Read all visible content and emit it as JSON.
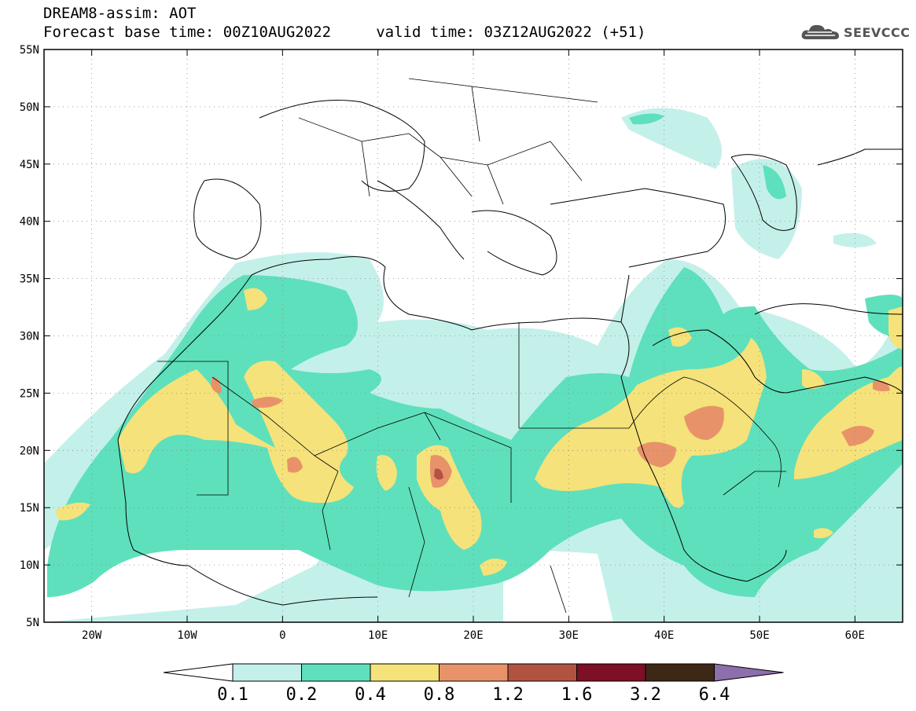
{
  "header": {
    "title_line1": "DREAM8-assim: AOT",
    "title_line2": "Forecast base time: 00Z10AUG2022     valid time: 03Z12AUG2022 (+51)"
  },
  "logo": {
    "text": "SEEVCCC",
    "icon": "cloud-logo-icon"
  },
  "map": {
    "lat_labels": [
      "55N",
      "50N",
      "45N",
      "40N",
      "35N",
      "30N",
      "25N",
      "20N",
      "15N",
      "10N",
      "5N"
    ],
    "lon_labels": [
      "20W",
      "10W",
      "0",
      "10E",
      "20E",
      "30E",
      "40E",
      "50E",
      "60E"
    ],
    "lat_range": [
      5,
      55
    ],
    "lon_range": [
      -25,
      65
    ],
    "grid": "dotted"
  },
  "colorbar": {
    "labels": [
      "0.1",
      "0.2",
      "0.4",
      "0.8",
      "1.2",
      "1.6",
      "3.2",
      "6.4"
    ],
    "colors": [
      "#ffffff",
      "#c4f0ea",
      "#5ee0bc",
      "#f5e27a",
      "#e8926a",
      "#b25342",
      "#7d0f26",
      "#3c2815",
      "#8c6fab"
    ]
  }
}
